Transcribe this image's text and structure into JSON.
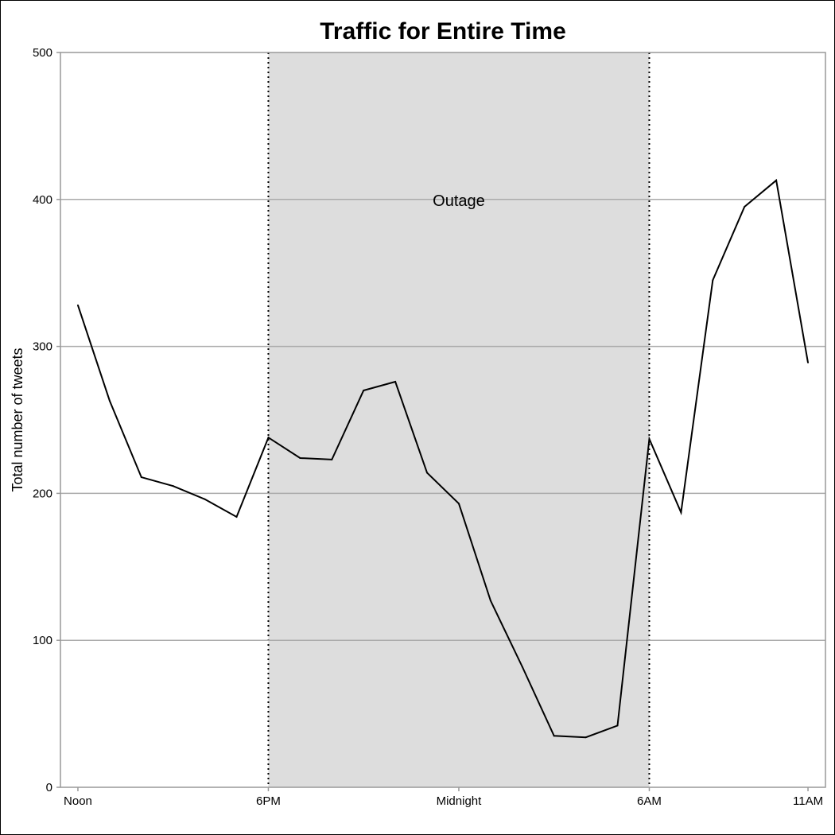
{
  "chart_data": {
    "type": "line",
    "title": "Traffic for Entire Time",
    "xlabel": "",
    "ylabel": "Total number of tweets",
    "xlim": [
      -0.55,
      23.55
    ],
    "ylim": [
      0,
      500
    ],
    "yticks": [
      0,
      100,
      200,
      300,
      400,
      500
    ],
    "xticks": [
      {
        "x": 0,
        "label": "Noon"
      },
      {
        "x": 6,
        "label": "6PM"
      },
      {
        "x": 12,
        "label": "Midnight"
      },
      {
        "x": 18,
        "label": "6AM"
      },
      {
        "x": 23,
        "label": "11AM"
      }
    ],
    "grid": true,
    "legend": false,
    "series": [
      {
        "x": [
          0,
          1,
          2,
          3,
          4,
          5,
          6,
          7,
          8,
          9,
          10,
          11,
          12,
          13,
          14,
          15,
          16,
          17,
          18,
          19,
          20,
          21,
          22,
          23
        ],
        "values": [
          328,
          263,
          211,
          205,
          196,
          184,
          238,
          224,
          223,
          270,
          276,
          214,
          193,
          127,
          82,
          35,
          34,
          42,
          237,
          187,
          345,
          395,
          413,
          289
        ],
        "color": "#000000"
      }
    ],
    "shaded_region": {
      "x_start": 6,
      "x_end": 18,
      "label": "Outage",
      "label_y": 400,
      "color": "#dddddd"
    }
  }
}
